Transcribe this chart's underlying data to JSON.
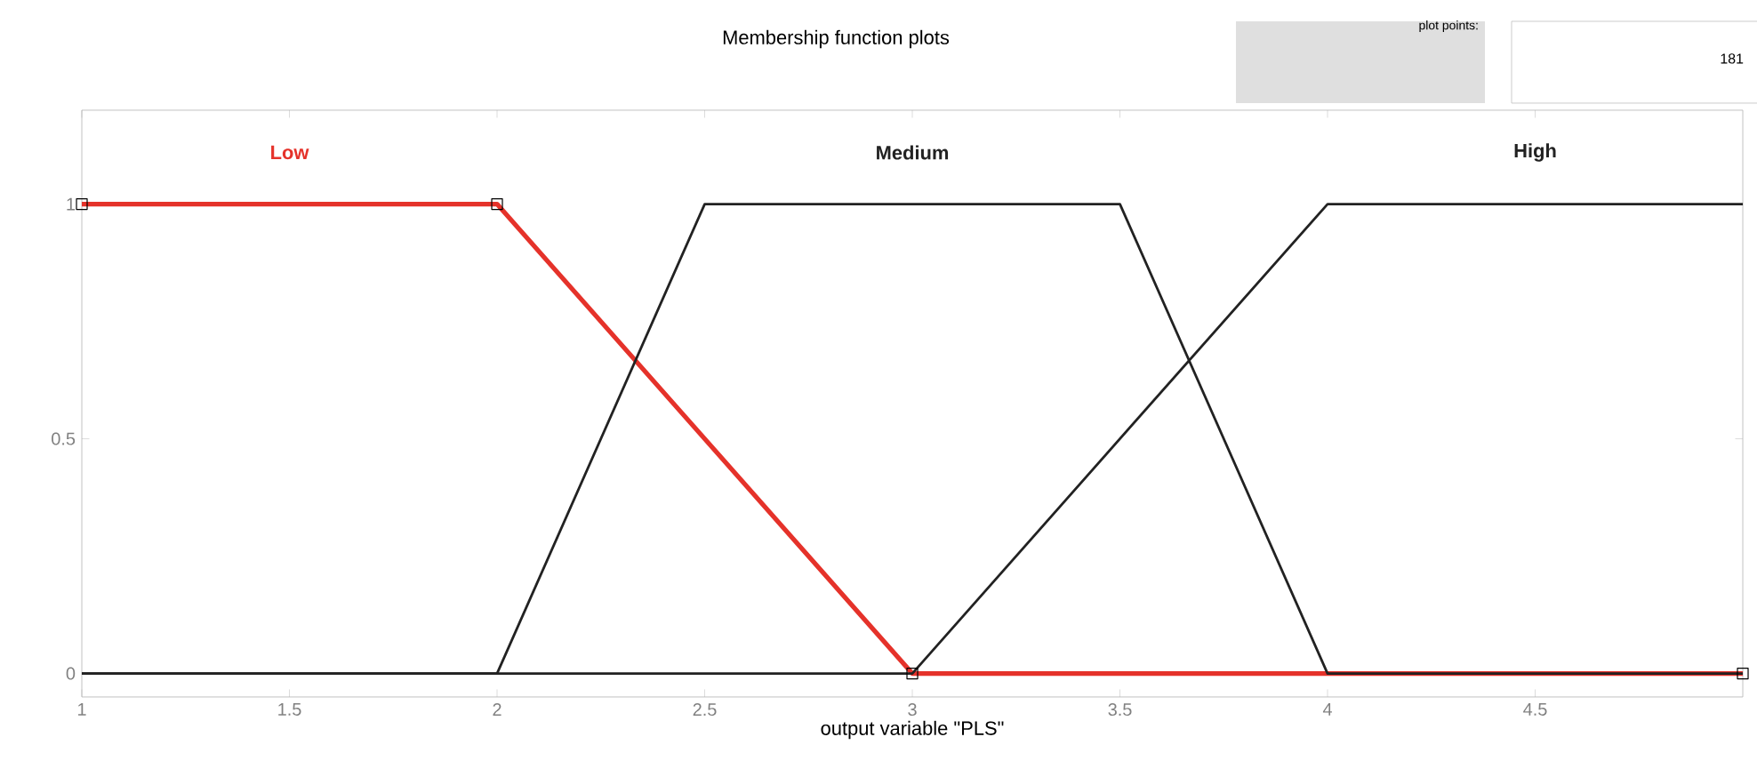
{
  "chart_data": {
    "type": "line",
    "title": "Membership function plots",
    "xlabel": "output variable \"PLS\"",
    "series": [
      {
        "name": "Low",
        "color": "#e5322a",
        "x": [
          1,
          2,
          3,
          5
        ],
        "values": [
          1,
          1,
          0,
          0
        ],
        "marker": "square"
      },
      {
        "name": "Medium",
        "color": "#222222",
        "x": [
          1,
          2,
          2.5,
          3.5,
          4,
          5
        ],
        "values": [
          0,
          0,
          1,
          1,
          0,
          0
        ]
      },
      {
        "name": "High",
        "color": "#222222",
        "x": [
          1,
          3,
          4,
          5
        ],
        "values": [
          0,
          0,
          1,
          1
        ]
      }
    ],
    "xlim": [
      1,
      5
    ],
    "xticks": [
      1,
      1.5,
      2,
      2.5,
      3,
      3.5,
      4,
      4.5
    ],
    "ylim": [
      -0.05,
      1.2
    ],
    "yticks": [
      0,
      0.5,
      1
    ],
    "grid": false,
    "legend": false,
    "line_style": "solid",
    "annotations": [
      "plot points:",
      "181"
    ]
  }
}
